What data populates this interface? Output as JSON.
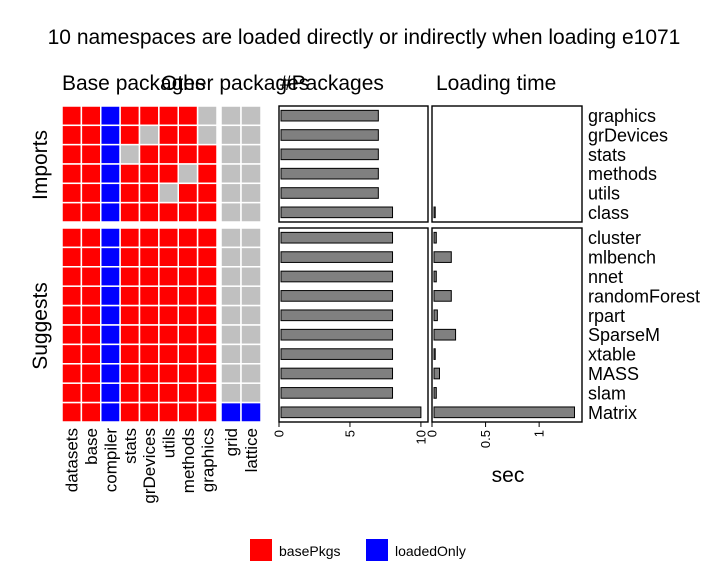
{
  "title": "10 namespaces are loaded directly or indirectly when loading e1071",
  "panel_headers": {
    "base": "Base packages",
    "other": "Other packages",
    "count": "#Packages",
    "time": "Loading time"
  },
  "groups": [
    "Imports",
    "Suggests"
  ],
  "time_axis_label": "sec",
  "legend": [
    {
      "label": "basePkgs",
      "color": "#ff0000"
    },
    {
      "label": "loadedOnly",
      "color": "#0000ff"
    }
  ],
  "colors": {
    "basePkgs": "#ff0000",
    "loadedOnly": "#0000ff",
    "absent": "#c0c0c0",
    "bar_fill": "#808080",
    "bar_stroke": "#000000"
  },
  "chart_data": {
    "type": "heatmap",
    "columns": {
      "base": [
        "datasets",
        "base",
        "compiler",
        "stats",
        "grDevices",
        "utils",
        "methods",
        "graphics"
      ],
      "other": [
        "grid",
        "lattice"
      ]
    },
    "state_codes": {
      "0": "absent",
      "1": "basePkgs",
      "2": "loadedOnly"
    },
    "rows": [
      {
        "pkg": "graphics",
        "group": "Imports",
        "base": [
          1,
          1,
          2,
          1,
          1,
          1,
          1,
          0
        ],
        "other": [
          0,
          0
        ],
        "count": 7,
        "time": 0.0
      },
      {
        "pkg": "grDevices",
        "group": "Imports",
        "base": [
          1,
          1,
          2,
          1,
          0,
          1,
          1,
          0
        ],
        "other": [
          0,
          0
        ],
        "count": 7,
        "time": 0.0
      },
      {
        "pkg": "stats",
        "group": "Imports",
        "base": [
          1,
          1,
          2,
          0,
          1,
          1,
          1,
          1
        ],
        "other": [
          0,
          0
        ],
        "count": 7,
        "time": 0.0
      },
      {
        "pkg": "methods",
        "group": "Imports",
        "base": [
          1,
          1,
          2,
          1,
          1,
          1,
          0,
          1
        ],
        "other": [
          0,
          0
        ],
        "count": 7,
        "time": 0.0
      },
      {
        "pkg": "utils",
        "group": "Imports",
        "base": [
          1,
          1,
          2,
          1,
          1,
          0,
          1,
          1
        ],
        "other": [
          0,
          0
        ],
        "count": 7,
        "time": 0.0
      },
      {
        "pkg": "class",
        "group": "Imports",
        "base": [
          1,
          1,
          2,
          1,
          1,
          1,
          1,
          1
        ],
        "other": [
          0,
          0
        ],
        "count": 8,
        "time": 0.03
      },
      {
        "pkg": "cluster",
        "group": "Suggests",
        "base": [
          1,
          1,
          2,
          1,
          1,
          1,
          1,
          1
        ],
        "other": [
          0,
          0
        ],
        "count": 8,
        "time": 0.04
      },
      {
        "pkg": "mlbench",
        "group": "Suggests",
        "base": [
          1,
          1,
          2,
          1,
          1,
          1,
          1,
          1
        ],
        "other": [
          0,
          0
        ],
        "count": 8,
        "time": 0.18
      },
      {
        "pkg": "nnet",
        "group": "Suggests",
        "base": [
          1,
          1,
          2,
          1,
          1,
          1,
          1,
          1
        ],
        "other": [
          0,
          0
        ],
        "count": 8,
        "time": 0.04
      },
      {
        "pkg": "randomForest",
        "group": "Suggests",
        "base": [
          1,
          1,
          2,
          1,
          1,
          1,
          1,
          1
        ],
        "other": [
          0,
          0
        ],
        "count": 8,
        "time": 0.18
      },
      {
        "pkg": "rpart",
        "group": "Suggests",
        "base": [
          1,
          1,
          2,
          1,
          1,
          1,
          1,
          1
        ],
        "other": [
          0,
          0
        ],
        "count": 8,
        "time": 0.05
      },
      {
        "pkg": "SparseM",
        "group": "Suggests",
        "base": [
          1,
          1,
          2,
          1,
          1,
          1,
          1,
          1
        ],
        "other": [
          0,
          0
        ],
        "count": 8,
        "time": 0.22
      },
      {
        "pkg": "xtable",
        "group": "Suggests",
        "base": [
          1,
          1,
          2,
          1,
          1,
          1,
          1,
          1
        ],
        "other": [
          0,
          0
        ],
        "count": 8,
        "time": 0.03
      },
      {
        "pkg": "MASS",
        "group": "Suggests",
        "base": [
          1,
          1,
          2,
          1,
          1,
          1,
          1,
          1
        ],
        "other": [
          0,
          0
        ],
        "count": 8,
        "time": 0.07
      },
      {
        "pkg": "slam",
        "group": "Suggests",
        "base": [
          1,
          1,
          2,
          1,
          1,
          1,
          1,
          1
        ],
        "other": [
          0,
          0
        ],
        "count": 8,
        "time": 0.04
      },
      {
        "pkg": "Matrix",
        "group": "Suggests",
        "base": [
          1,
          1,
          2,
          1,
          1,
          1,
          1,
          1
        ],
        "other": [
          2,
          2
        ],
        "count": 10,
        "time": 1.33
      }
    ],
    "count_axis": {
      "range": [
        0,
        10.5
      ],
      "ticks": [
        0,
        5,
        10
      ]
    },
    "time_axis": {
      "range": [
        0,
        1.4
      ],
      "ticks": [
        0,
        0.5,
        1
      ],
      "tick_labels": [
        "0",
        "0.5",
        "1"
      ],
      "label": "sec"
    },
    "legend_position": "bottom",
    "grid": false
  }
}
